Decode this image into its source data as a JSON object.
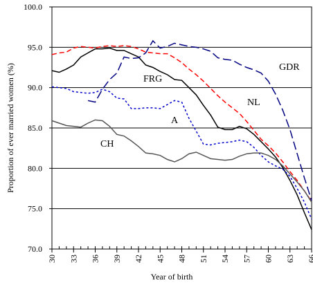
{
  "chart_data": {
    "type": "line",
    "x_label": "Year of birth",
    "y_label": "Proportion of ever married women (%)",
    "x": [
      30,
      31,
      32,
      33,
      34,
      35,
      36,
      37,
      38,
      39,
      40,
      41,
      42,
      43,
      44,
      45,
      46,
      47,
      48,
      49,
      50,
      51,
      52,
      53,
      54,
      55,
      56,
      57,
      58,
      59,
      60,
      61,
      62,
      63,
      64,
      65,
      66
    ],
    "xlim": [
      30,
      66
    ],
    "xticks": [
      30,
      33,
      36,
      39,
      42,
      45,
      48,
      51,
      54,
      57,
      60,
      63,
      66
    ],
    "ylim": [
      70,
      100
    ],
    "yticks": [
      {
        "value": 70,
        "label": "70.0"
      },
      {
        "value": 75,
        "label": "75.0"
      },
      {
        "value": 80,
        "label": "80.0"
      },
      {
        "value": 85,
        "label": "85.0"
      },
      {
        "value": 90,
        "label": "90.0"
      },
      {
        "value": 95,
        "label": "95.0"
      },
      {
        "value": 100,
        "label": "100.0"
      }
    ],
    "grid": true,
    "series": [
      {
        "name": "FRG",
        "color": "#000000",
        "dash": "solid",
        "values": [
          92.1,
          91.9,
          92.3,
          92.8,
          93.8,
          94.3,
          94.8,
          94.8,
          94.9,
          94.6,
          94.6,
          94.2,
          93.8,
          92.8,
          92.5,
          92.0,
          91.6,
          91.0,
          90.9,
          90.0,
          89.1,
          87.8,
          86.6,
          85.1,
          84.8,
          84.8,
          85.2,
          84.9,
          84.2,
          83.3,
          82.4,
          81.4,
          80.1,
          78.5,
          76.7,
          74.5,
          72.4
        ]
      },
      {
        "name": "NL",
        "color": "#ff0000",
        "dash": "dashed",
        "values": [
          94.1,
          94.3,
          94.4,
          94.9,
          95.1,
          95.0,
          94.9,
          95.1,
          95.2,
          95.1,
          95.2,
          95.1,
          94.8,
          94.4,
          94.3,
          94.2,
          94.2,
          93.7,
          93.1,
          92.3,
          91.6,
          90.8,
          89.9,
          89.0,
          88.2,
          87.5,
          86.8,
          85.8,
          84.7,
          83.6,
          82.8,
          81.9,
          80.8,
          79.6,
          78.5,
          77.2,
          75.9
        ]
      },
      {
        "name": "GDR",
        "color": "#000080",
        "dash": "longdash",
        "values": [
          null,
          null,
          null,
          null,
          null,
          88.4,
          88.2,
          89.8,
          91.0,
          91.8,
          93.8,
          93.6,
          93.7,
          94.3,
          95.8,
          94.9,
          95.1,
          95.5,
          95.3,
          95.1,
          95.0,
          94.8,
          94.5,
          93.7,
          93.5,
          93.4,
          92.9,
          92.5,
          92.2,
          91.8,
          90.8,
          89.2,
          87.2,
          84.8,
          81.8,
          78.8,
          76.0
        ]
      },
      {
        "name": "A",
        "color": "#0000cc",
        "dash": "shortdash",
        "values": [
          90.1,
          90.0,
          89.9,
          89.5,
          89.4,
          89.3,
          89.4,
          89.8,
          89.5,
          88.7,
          88.6,
          87.4,
          87.4,
          87.5,
          87.5,
          87.4,
          87.9,
          88.4,
          88.2,
          86.2,
          84.6,
          83.0,
          82.9,
          83.1,
          83.2,
          83.3,
          83.5,
          83.3,
          82.6,
          81.6,
          80.8,
          80.3,
          79.9,
          79.0,
          77.5,
          75.8,
          73.7
        ]
      },
      {
        "name": "CH",
        "color": "#555555",
        "dash": "solid",
        "values": [
          85.9,
          85.6,
          85.3,
          85.2,
          85.1,
          85.6,
          86.0,
          85.9,
          85.2,
          84.2,
          84.0,
          83.4,
          82.7,
          81.9,
          81.8,
          81.6,
          81.1,
          80.8,
          81.2,
          81.8,
          82.0,
          81.6,
          81.2,
          81.1,
          81.0,
          81.1,
          81.5,
          81.8,
          81.9,
          81.9,
          81.6,
          81.1,
          80.3,
          79.3,
          78.3,
          77.2,
          75.8
        ]
      }
    ]
  }
}
